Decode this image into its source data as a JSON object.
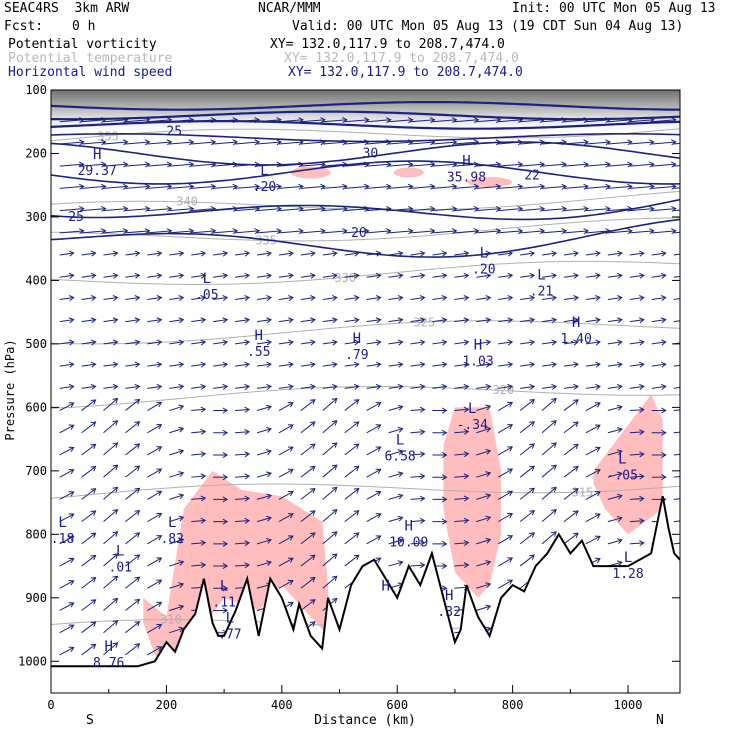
{
  "header": {
    "model": "SEAC4RS  3km ARW",
    "org": "NCAR/MMM",
    "init": "Init: 00 UTC Mon 05 Aug 13",
    "fcst_label": "Fcst:",
    "fcst_value": "0 h",
    "valid": "Valid: 00 UTC Mon 05 Aug 13 (19 CDT Sun 04 Aug 13)",
    "fields": [
      {
        "name": "Potential vorticity",
        "xy": "XY= 132.0,117.9 to 208.7,474.0",
        "color": "#000000"
      },
      {
        "name": "Potential temperature",
        "xy": "XY= 132.0,117.9 to 208.7,474.0",
        "color": "#b8b8b8"
      },
      {
        "name": "Horizontal wind speed",
        "xy": "XY= 132.0,117.9 to 208.7,474.0",
        "color": "#1a1a8a"
      }
    ]
  },
  "colors": {
    "pv_fill": "#ffbdbd",
    "theta_contour": "#b0b0b0",
    "wind_contour": "#1a237e",
    "wind_vector": "#1a237e",
    "terrain": "#000000",
    "hl_label": "#1a1a8a"
  },
  "chart_data": {
    "type": "cross-section",
    "xlabel": "Distance (km)",
    "ylabel": "Pressure (hPa)",
    "xlim": [
      0,
      1090
    ],
    "ylim": [
      1050,
      100
    ],
    "xticks": [
      0,
      200,
      400,
      600,
      800,
      1000
    ],
    "yticks": [
      100,
      200,
      300,
      400,
      500,
      600,
      700,
      800,
      900,
      1000
    ],
    "end_labels": {
      "left": "S",
      "right": "N"
    },
    "terrain": {
      "x": [
        0,
        150,
        180,
        200,
        215,
        230,
        250,
        265,
        280,
        290,
        300,
        320,
        340,
        360,
        380,
        400,
        420,
        430,
        450,
        470,
        480,
        500,
        520,
        540,
        560,
        580,
        600,
        620,
        640,
        660,
        680,
        700,
        710,
        720,
        740,
        760,
        780,
        800,
        820,
        840,
        860,
        880,
        900,
        920,
        940,
        960,
        980,
        1000,
        1020,
        1040,
        1060,
        1070,
        1080,
        1090
      ],
      "p": [
        1008,
        1008,
        1000,
        970,
        985,
        950,
        925,
        870,
        940,
        960,
        960,
        920,
        870,
        960,
        870,
        900,
        950,
        910,
        960,
        980,
        900,
        950,
        880,
        850,
        840,
        870,
        900,
        850,
        880,
        830,
        900,
        970,
        950,
        880,
        930,
        960,
        900,
        880,
        890,
        850,
        830,
        800,
        830,
        810,
        850,
        850,
        850,
        850,
        840,
        830,
        740,
        790,
        830,
        840
      ]
    },
    "theta_contours": [
      {
        "label": "355",
        "p": 180
      },
      {
        "label": "340",
        "p": 290
      },
      {
        "label": "335",
        "p": 335
      },
      {
        "label": "330",
        "p": 400
      },
      {
        "label": "325",
        "p": 490
      },
      {
        "label": "320",
        "p": 590
      },
      {
        "label": "315",
        "p": 740
      },
      {
        "label": "310",
        "p": 950
      }
    ],
    "wind_speed_contours": [
      {
        "label": "25",
        "p": 165
      },
      {
        "label": "30",
        "p": 200
      },
      {
        "label": "22",
        "p": 235
      },
      {
        "label": "25",
        "p": 300
      },
      {
        "label": "20",
        "p": 325
      }
    ],
    "pv_extrema": [
      {
        "kind": "H",
        "value": "29.37",
        "x": 80,
        "p": 215
      },
      {
        "kind": "L",
        "value": ".20",
        "x": 370,
        "p": 240
      },
      {
        "kind": "H",
        "value": "35.98",
        "x": 720,
        "p": 225
      },
      {
        "kind": "L",
        "value": ".05",
        "x": 270,
        "p": 410
      },
      {
        "kind": "L",
        "value": ".20",
        "x": 750,
        "p": 370
      },
      {
        "kind": "L",
        "value": ".21",
        "x": 850,
        "p": 405
      },
      {
        "kind": "H",
        "value": ".55",
        "x": 360,
        "p": 500
      },
      {
        "kind": "H",
        "value": ".79",
        "x": 530,
        "p": 505
      },
      {
        "kind": "H",
        "value": "1.03",
        "x": 740,
        "p": 515
      },
      {
        "kind": "H",
        "value": "1.40",
        "x": 910,
        "p": 480
      },
      {
        "kind": "L",
        "value": "-.34",
        "x": 730,
        "p": 615
      },
      {
        "kind": "L",
        "value": "6.58",
        "x": 605,
        "p": 665
      },
      {
        "kind": "L",
        "value": "-.05",
        "x": 990,
        "p": 695
      },
      {
        "kind": "H",
        "value": "10.09",
        "x": 620,
        "p": 800
      },
      {
        "kind": "L",
        "value": ".18",
        "x": 20,
        "p": 795
      },
      {
        "kind": "L",
        "value": ".82",
        "x": 210,
        "p": 795
      },
      {
        "kind": "L",
        "value": ".01",
        "x": 120,
        "p": 840
      },
      {
        "kind": "L",
        "value": ".11",
        "x": 300,
        "p": 895
      },
      {
        "kind": "L",
        "value": ".77",
        "x": 310,
        "p": 945
      },
      {
        "kind": "H",
        "value": "",
        "x": 580,
        "p": 895
      },
      {
        "kind": "H",
        "value": ".32",
        "x": 690,
        "p": 910
      },
      {
        "kind": "L",
        "value": "1.28",
        "x": 1000,
        "p": 850
      },
      {
        "kind": "H",
        "value": "8.76",
        "x": 100,
        "p": 990
      }
    ],
    "pv_fill_regions": [
      {
        "x": [
          160,
          200,
          230,
          280,
          330,
          400,
          470,
          480,
          480,
          400,
          360,
          300,
          260,
          230,
          200,
          180,
          160
        ],
        "p": [
          900,
          930,
          760,
          700,
          730,
          740,
          780,
          880,
          960,
          880,
          920,
          900,
          950,
          980,
          1000,
          990,
          940
        ]
      },
      {
        "x": [
          680,
          700,
          760,
          780,
          780,
          760,
          740,
          700,
          680
        ],
        "p": [
          660,
          600,
          600,
          700,
          800,
          880,
          900,
          860,
          760
        ]
      },
      {
        "x": [
          940,
          1040,
          1060,
          1060,
          1000,
          960,
          940
        ],
        "p": [
          700,
          580,
          620,
          760,
          800,
          760,
          720
        ]
      }
    ]
  }
}
